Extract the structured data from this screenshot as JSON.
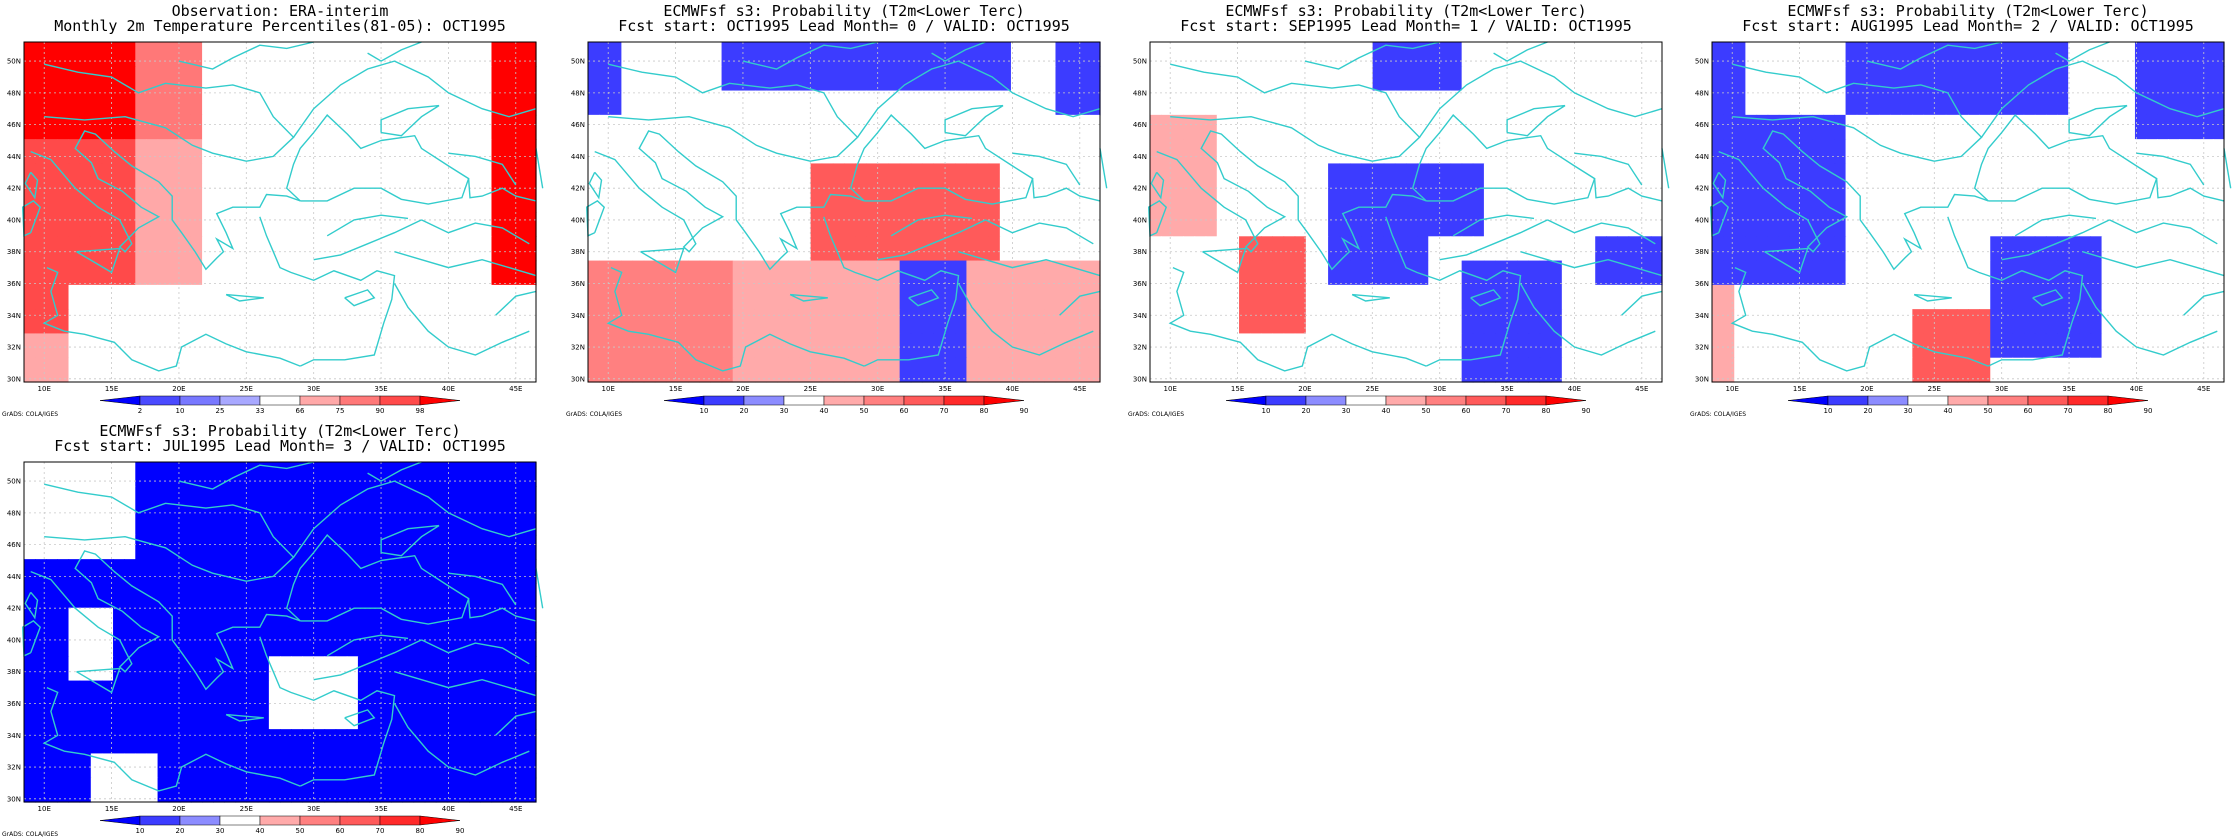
{
  "colors": {
    "coast": "#33cccc",
    "grid": "#c8c8c8",
    "frame": "#000000",
    "scale_obs": [
      "#0000ff",
      "#4a4aff",
      "#7878ff",
      "#a8a8ff",
      "#ffffff",
      "#ffa8a8",
      "#ff7878",
      "#ff4a4a",
      "#ff0000"
    ],
    "scale_prob": [
      "#0000ff",
      "#3c3cff",
      "#8c8cff",
      "#ffffff",
      "#ffaaaa",
      "#ff8080",
      "#ff5a5a",
      "#ff2a2a",
      "#ff0000"
    ]
  },
  "panels": [
    {
      "title": [
        "Observation: ERA-interim",
        "Monthly 2m Temperature Percentiles(81-05): OCT1995"
      ],
      "colorbar_ticks": [
        "2",
        "10",
        "25",
        "33",
        "66",
        "75",
        "90",
        "98"
      ],
      "scale": "scale_obs",
      "credit": "GrADS: COLA/IGES",
      "grid": [
        "8888888888666666444444444444444444444444448888",
        "8888888888666666444444444444444444444444448888",
        "8888888888666666444444444444444444444444448888",
        "8888888888666666444444444444444444444444448888",
        "7777777777555555444444444444444444444444448888",
        "7777777777555555444444444444444444444444448888",
        "7777777777555555444444444444444444444444448888",
        "7777777777555555444444444444444444444444448888",
        "7777777777555555444444444444444444444444448888",
        "7777777777555555444444444444444444444444448888",
        "7777444444444444444444444444444444444444444444",
        "7777444444444444444444444444444444444444444444",
        "5555444444444444444444444444444444444444444444",
        "5555444444444444444444444444444444444444444444"
      ]
    },
    {
      "title": [
        "ECMWFsf s3: Probability (T2m<Lower Terc)",
        "Fcst start: OCT1995  Lead Month= 0 / VALID: OCT1995"
      ],
      "colorbar_ticks": [
        "10",
        "20",
        "30",
        "40",
        "50",
        "60",
        "70",
        "80",
        "90"
      ],
      "scale": "scale_prob",
      "credit": "GrADS: COLA/IGES",
      "grid": []
    },
    {
      "title": [
        "ECMWFsf s3: Probability (T2m<Lower Terc)",
        "Fcst start: SEP1995  Lead Month= 1 / VALID: OCT1995"
      ],
      "colorbar_ticks": [
        "10",
        "20",
        "30",
        "40",
        "50",
        "60",
        "70",
        "80",
        "90"
      ],
      "scale": "scale_prob",
      "credit": "GrADS: COLA/IGES",
      "grid": []
    },
    {
      "title": [
        "ECMWFsf s3: Probability (T2m<Lower Terc)",
        "Fcst start: AUG1995  Lead Month= 2 / VALID: OCT1995"
      ],
      "colorbar_ticks": [
        "10",
        "20",
        "30",
        "40",
        "50",
        "60",
        "70",
        "80",
        "90"
      ],
      "scale": "scale_prob",
      "credit": "GrADS: COLA/IGES",
      "grid": []
    },
    {
      "title": [
        "ECMWFsf s3: Probability (T2m<Lower Terc)",
        "Fcst start: JUL1995  Lead Month= 3 / VALID: OCT1995"
      ],
      "colorbar_ticks": [
        "10",
        "20",
        "30",
        "40",
        "50",
        "60",
        "70",
        "80",
        "90"
      ],
      "scale": "scale_prob",
      "credit": "GrADS: COLA/IGES",
      "grid": []
    }
  ],
  "axes": {
    "x_ticks": [
      "10E",
      "15E",
      "20E",
      "25E",
      "30E",
      "35E",
      "40E",
      "45E"
    ],
    "y_ticks": [
      "30N",
      "32N",
      "34N",
      "36N",
      "38N",
      "40N",
      "42N",
      "44N",
      "46N",
      "48N",
      "50N"
    ]
  }
}
